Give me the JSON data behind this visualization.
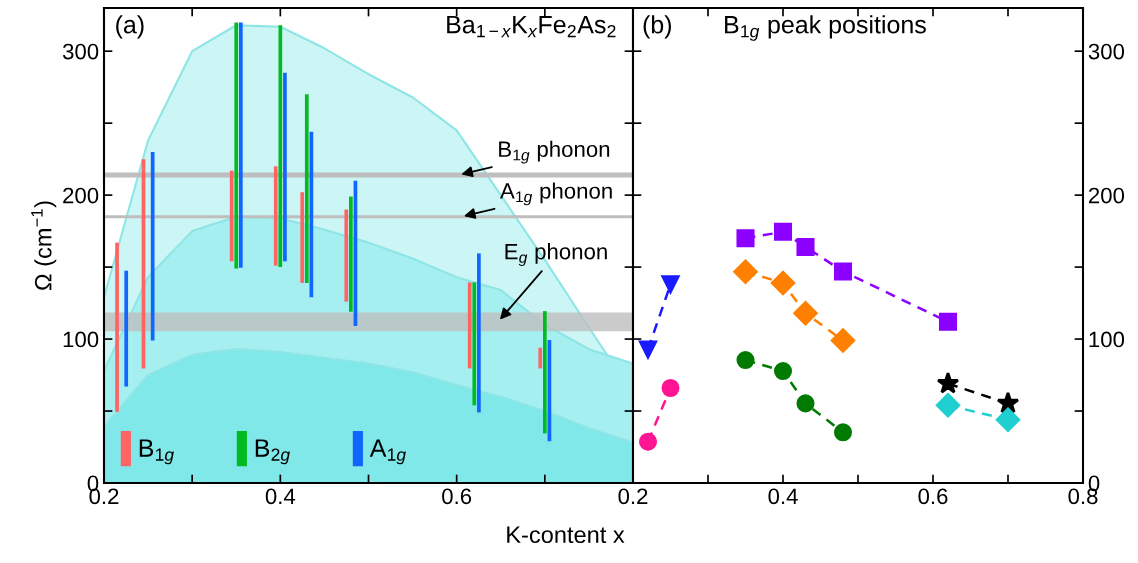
{
  "chart_data": [
    {
      "type": "bar",
      "title": "(a)",
      "subtitle": "Ba$_{1−x}$K$_{x}$Fe$_{2}$As$_{2}$",
      "xlabel": "K-content x",
      "ylabel": "Ω (cm$^{−1}$)",
      "x": [
        0.2,
        0.25,
        0.3,
        0.35,
        0.4,
        0.45,
        0.5,
        0.55,
        0.6,
        0.65,
        0.7,
        0.75,
        0.8
      ],
      "series": [
        {
          "type": "area",
          "color": "#ccf5f5",
          "values": [
            129,
            238,
            300,
            318,
            317,
            302,
            284,
            268,
            245,
            200,
            155,
            108,
            62
          ]
        },
        {
          "type": "area",
          "color": "#a5eff0",
          "values": [
            78,
            143,
            175,
            185,
            184,
            176,
            167,
            156,
            143,
            134,
            110,
            93,
            83
          ]
        },
        {
          "type": "area",
          "color": "#80e8e8",
          "values": [
            39,
            75,
            89,
            93,
            91,
            87,
            83,
            77,
            68,
            60,
            50,
            38,
            28
          ]
        },
        {
          "type": "bar",
          "name": "B$_{1g}$",
          "color": "#ff6464",
          "x": [
            0.22,
            0.25,
            0.35,
            0.4,
            0.43,
            0.48,
            0.62,
            0.7
          ],
          "base": [
            49.5,
            79.6,
            154,
            151,
            139,
            126,
            79.6,
            79.6
          ],
          "values": [
            117.5,
            145.4,
            63,
            69,
            63,
            64,
            59.8,
            14.4
          ]
        },
        {
          "type": "bar",
          "name": "B$_{2g}$",
          "color": "#00bb22",
          "x": [
            0.35,
            0.4,
            0.43,
            0.48,
            0.62,
            0.7
          ],
          "base": [
            149,
            150,
            139,
            119,
            54,
            34.5
          ],
          "values": [
            171,
            168,
            131,
            80,
            85.4,
            84.9
          ]
        },
        {
          "type": "bar",
          "name": "A$_{1g}$",
          "color": "#1166ff",
          "x": [
            0.22,
            0.25,
            0.35,
            0.4,
            0.43,
            0.48,
            0.62,
            0.7
          ],
          "base": [
            67,
            99,
            149.5,
            154,
            129,
            109,
            49,
            29
          ],
          "values": [
            80.5,
            131,
            170.5,
            131,
            115,
            101,
            110.5,
            70.3
          ]
        }
      ],
      "ref_lines": [
        {
          "axis": "y",
          "value": 214,
          "label": "B$_{1g}$ phonon",
          "color": "#bebebe"
        },
        {
          "axis": "y",
          "value": 185,
          "label": "A$_{1g}$ phonon",
          "color": "#bebebe"
        }
      ],
      "bands": [
        {
          "axis": "y",
          "from": 105.5,
          "to": 118.5,
          "label": "E$_{g}$ phonon",
          "color": "#bebebe"
        }
      ],
      "legend": "bottom left",
      "xlim": [
        0.2,
        0.8
      ],
      "xticks": [
        0.2,
        {
          "value": 0.3,
          "label": null
        },
        0.4,
        {
          "value": 0.5,
          "label": null
        },
        0.6,
        {
          "value": 0.7,
          "label": null
        },
        {
          "value": 0.8,
          "label": null
        }
      ],
      "ylim": [
        0,
        330
      ],
      "yticks": [
        0,
        {
          "value": 50,
          "label": null
        },
        100,
        {
          "value": 150,
          "label": null
        },
        200,
        {
          "value": 250,
          "label": null
        },
        300
      ]
    },
    {
      "type": "line",
      "title": "(b)",
      "subtitle": "B$_{1g}$ peak positions",
      "line_style": "dashed",
      "series": [
        {
          "axis": "y2",
          "marker": "triangle",
          "color": "#1a1aff",
          "x": [
            0.22,
            0.25
          ],
          "values": [
            92.8,
            138
          ]
        },
        {
          "axis": "y2",
          "marker": "circle",
          "color": "#ff1493",
          "x": [
            0.22,
            0.25
          ],
          "values": [
            28.7,
            66
          ]
        },
        {
          "axis": "y2",
          "marker": "square",
          "color": "#8b00ff",
          "x": [
            0.35,
            0.4,
            0.43,
            0.48,
            0.62
          ],
          "values": [
            170,
            174.5,
            164,
            147,
            112
          ]
        },
        {
          "axis": "y2",
          "marker": "diamond",
          "color": "#ff8000",
          "x": [
            0.35,
            0.4,
            0.43,
            0.48
          ],
          "values": [
            146.8,
            139,
            118,
            99
          ]
        },
        {
          "axis": "y2",
          "marker": "circle",
          "color": "#007a00",
          "x": [
            0.35,
            0.4,
            0.43,
            0.48
          ],
          "values": [
            85.4,
            77.8,
            55.3,
            35.2
          ]
        },
        {
          "axis": "y2",
          "marker": "star",
          "color": "#000000",
          "x": [
            0.62,
            0.7
          ],
          "values": [
            69,
            55.3
          ]
        },
        {
          "axis": "y2",
          "marker": "diamond",
          "color": "#20d0d0",
          "x": [
            0.62,
            0.7
          ],
          "values": [
            54,
            44
          ]
        }
      ],
      "xlim": [
        0.2,
        0.8
      ],
      "xticks": [
        0.2,
        {
          "value": 0.3,
          "label": null
        },
        0.4,
        {
          "value": 0.5,
          "label": null
        },
        0.6,
        {
          "value": 0.7,
          "label": null
        },
        0.8
      ],
      "y2lim": [
        0,
        330
      ],
      "y2ticks": [
        0,
        {
          "value": 50,
          "label": null
        },
        100,
        {
          "value": 150,
          "label": null
        },
        200,
        {
          "value": 250,
          "label": null
        },
        300
      ]
    }
  ]
}
